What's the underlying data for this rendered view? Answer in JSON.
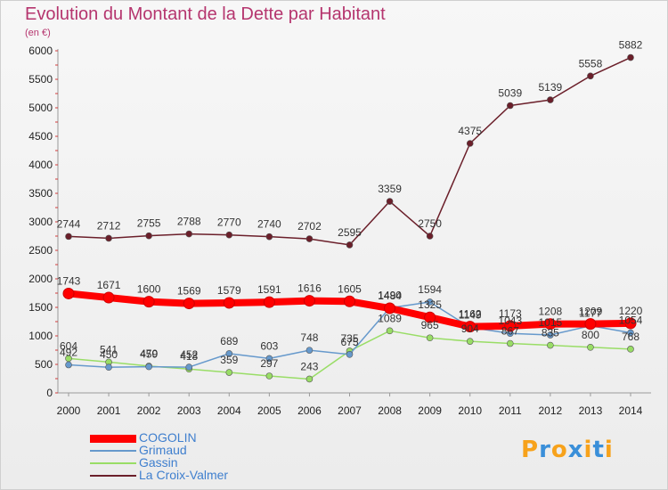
{
  "header": {
    "title": "Evolution du Montant de la Dette par Habitant",
    "subtitle": "(en €)"
  },
  "chart_data": {
    "type": "line",
    "x": [
      "2000",
      "2001",
      "2002",
      "2003",
      "2004",
      "2005",
      "2006",
      "2007",
      "2008",
      "2009",
      "2010",
      "2011",
      "2012",
      "2013",
      "2014"
    ],
    "ylim": [
      0,
      6000
    ],
    "yticks": [
      0,
      500,
      1000,
      1500,
      2000,
      2500,
      3000,
      3500,
      4000,
      4500,
      5000,
      5500,
      6000
    ],
    "grid": false,
    "legend_position": "bottom-left",
    "series": [
      {
        "name": "COGOLIN",
        "color": "#ff0000",
        "values": [
          1743,
          1671,
          1600,
          1569,
          1579,
          1591,
          1616,
          1605,
          1484,
          1325,
          1162,
          1173,
          1208,
          1209,
          1220
        ],
        "labels": [
          "1743",
          "1671",
          "1600",
          "1569",
          "1579",
          "1591",
          "1616",
          "1605",
          "1484",
          "1325",
          "1162",
          "1173",
          "1208",
          "1209",
          "1220"
        ]
      },
      {
        "name": "Grimaud",
        "color": "#6699cc",
        "values": [
          492,
          450,
          459,
          452,
          689,
          603,
          748,
          675,
          1490,
          1594,
          1149,
          1043,
          1015,
          1177,
          1054
        ],
        "labels": [
          "492",
          "450",
          "459",
          "452",
          "689",
          "603",
          "748",
          "675",
          "1490",
          "1594",
          "1149",
          "1043",
          "1015",
          "1177",
          "1054"
        ]
      },
      {
        "name": "Gassin",
        "color": "#99dd66",
        "values": [
          604,
          541,
          470,
          418,
          359,
          297,
          243,
          735,
          1089,
          965,
          904,
          867,
          835,
          800,
          768
        ],
        "labels": [
          "604",
          "541",
          "470",
          "418",
          "359",
          "297",
          "243",
          "735",
          "1089",
          "965",
          "904",
          "867",
          "835",
          "800",
          "768"
        ]
      },
      {
        "name": "La Croix-Valmer",
        "color": "#6b1f2a",
        "values": [
          2744,
          2712,
          2755,
          2788,
          2770,
          2740,
          2702,
          2595,
          3359,
          2750,
          4375,
          5039,
          5139,
          5558,
          5882
        ],
        "labels": [
          "2744",
          "2712",
          "2755",
          "2788",
          "2770",
          "2740",
          "2702",
          "2595",
          "3359",
          "2750",
          "4375",
          "5039",
          "5139",
          "5558",
          "5882"
        ]
      }
    ]
  },
  "logo": {
    "letters": [
      "P",
      "r",
      "o",
      "x",
      "i",
      "t",
      "i"
    ],
    "colors": [
      "#f7a21b",
      "#3a8fd9",
      "#f7a21b",
      "#3a8fd9",
      "#f7a21b",
      "#3a8fd9",
      "#f7a21b"
    ]
  }
}
